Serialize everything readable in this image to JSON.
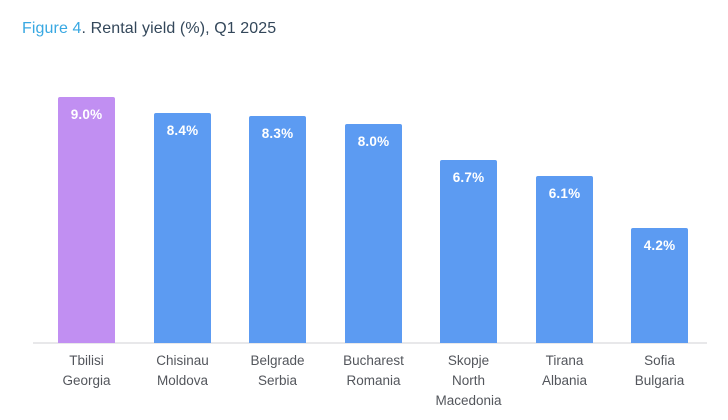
{
  "title": {
    "figure": "Figure 4",
    "rest": ". Rental yield (%), Q1 2025"
  },
  "chart_data": {
    "type": "bar",
    "title": "Figure 4. Rental yield (%), Q1 2025",
    "categories": [
      [
        "Tbilisi",
        "Georgia"
      ],
      [
        "Chisinau",
        "Moldova"
      ],
      [
        "Belgrade",
        "Serbia"
      ],
      [
        "Bucharest",
        "Romania"
      ],
      [
        "Skopje",
        "North",
        "Macedonia"
      ],
      [
        "Tirana",
        "Albania"
      ],
      [
        "Sofia",
        "Bulgaria"
      ]
    ],
    "values": [
      9.0,
      8.4,
      8.3,
      8.0,
      6.7,
      6.1,
      4.2
    ],
    "value_labels": [
      "9.0%",
      "8.4%",
      "8.3%",
      "8.0%",
      "6.7%",
      "6.1%",
      "4.2%"
    ],
    "unit": "%",
    "ylim": [
      0,
      9.0
    ],
    "grid": false,
    "legend": "none",
    "highlight_index": 0,
    "colors": {
      "bar": "#5C9BF2",
      "highlight_bar": "#C18FF2",
      "value_label": "#FFFFFF",
      "axis_line": "#E8E8EA",
      "category_label": "#53565C",
      "title_figure": "#38A8E2",
      "title_text": "#33475A"
    }
  }
}
